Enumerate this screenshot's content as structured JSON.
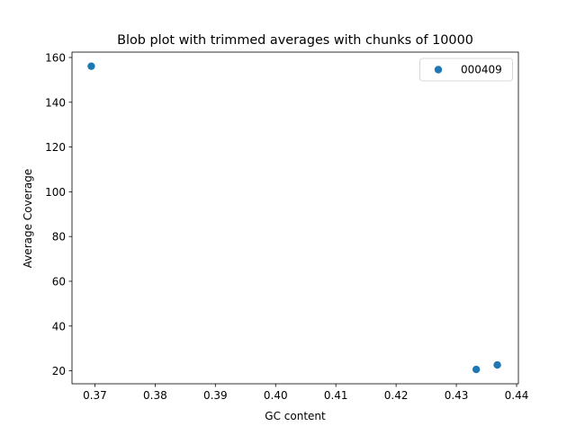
{
  "chart_data": {
    "type": "scatter",
    "title": "Blob plot with trimmed averages with chunks of 10000",
    "xlabel": "GC content",
    "ylabel": "Average Coverage",
    "xlim": [
      0.3662,
      0.4403
    ],
    "ylim": [
      14.2,
      162.4
    ],
    "xticks": [
      0.37,
      0.38,
      0.39,
      0.4,
      0.41,
      0.42,
      0.43,
      0.44
    ],
    "xtick_labels": [
      "0.37",
      "0.38",
      "0.39",
      "0.40",
      "0.41",
      "0.42",
      "0.43",
      "0.44"
    ],
    "yticks": [
      20,
      40,
      60,
      80,
      100,
      120,
      140,
      160
    ],
    "ytick_labels": [
      "20",
      "40",
      "60",
      "80",
      "100",
      "120",
      "140",
      "160"
    ],
    "grid": false,
    "legend_position": "top-right",
    "series": [
      {
        "name": "000409",
        "color": "#1f77b4",
        "x": [
          0.3694,
          0.4333,
          0.4368
        ],
        "y": [
          156.1,
          20.6,
          22.6
        ]
      }
    ]
  }
}
